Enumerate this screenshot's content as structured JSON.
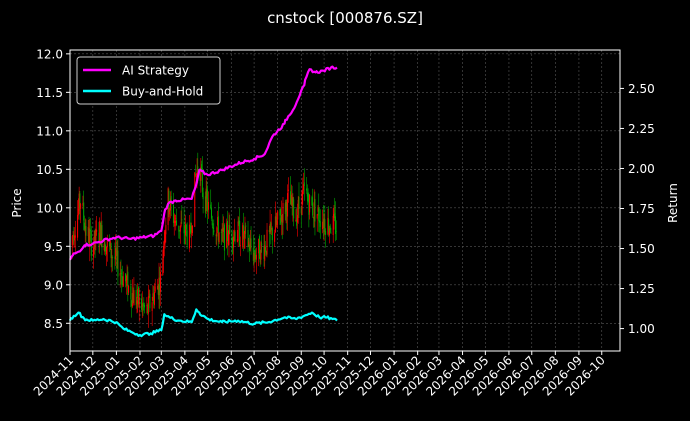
{
  "chart_data": {
    "type": "line",
    "title": "cnstock [000876.SZ]",
    "xlabel": "",
    "ylabel_left": "Price",
    "ylabel_right": "Return",
    "x_range": [
      "2024-11-01",
      "2026-10-25"
    ],
    "x_ticks": [
      "2024-11",
      "2024-12",
      "2025-01",
      "2025-02",
      "2025-03",
      "2025-04",
      "2025-05",
      "2025-06",
      "2025-07",
      "2025-08",
      "2025-09",
      "2025-10",
      "2025-11",
      "2025-12",
      "2026-01",
      "2026-02",
      "2026-03",
      "2026-04",
      "2026-05",
      "2026-06",
      "2026-07",
      "2026-08",
      "2026-09",
      "2026-10"
    ],
    "ylim_left": [
      8.14,
      12.05
    ],
    "yticks_left": [
      "8.5",
      "9.0",
      "9.5",
      "10.0",
      "10.5",
      "11.0",
      "11.5",
      "12.0"
    ],
    "ylim_right": [
      0.86,
      2.74
    ],
    "yticks_right": [
      "1.00",
      "1.25",
      "1.50",
      "1.75",
      "2.00",
      "2.25",
      "2.50"
    ],
    "grid": true,
    "legend": {
      "location": "upper-left"
    },
    "colors": {
      "up": "#ff0000",
      "down": "#00aa00",
      "ai": "#ff00ff",
      "bh": "#00ffff",
      "grid": "#555555",
      "background": "#000000",
      "text": "#ffffff"
    },
    "price_path": [
      [
        "2024-11-01",
        9.5
      ],
      [
        "2024-11-08",
        9.8
      ],
      [
        "2024-11-15",
        10.1
      ],
      [
        "2024-11-22",
        9.7
      ],
      [
        "2024-12-01",
        9.5
      ],
      [
        "2024-12-10",
        9.7
      ],
      [
        "2024-12-20",
        9.5
      ],
      [
        "2025-01-01",
        9.3
      ],
      [
        "2025-01-10",
        9.1
      ],
      [
        "2025-01-20",
        8.9
      ],
      [
        "2025-02-01",
        8.75
      ],
      [
        "2025-02-10",
        8.65
      ],
      [
        "2025-02-20",
        8.9
      ],
      [
        "2025-03-01",
        9.1
      ],
      [
        "2025-03-05",
        9.7
      ],
      [
        "2025-03-10",
        10.1
      ],
      [
        "2025-03-20",
        9.8
      ],
      [
        "2025-04-01",
        9.7
      ],
      [
        "2025-04-08",
        9.6
      ],
      [
        "2025-04-15",
        10.4
      ],
      [
        "2025-04-20",
        10.6
      ],
      [
        "2025-04-25",
        10.2
      ],
      [
        "2025-05-05",
        9.9
      ],
      [
        "2025-05-20",
        9.6
      ],
      [
        "2025-06-05",
        9.7
      ],
      [
        "2025-06-20",
        9.6
      ],
      [
        "2025-07-01",
        9.4
      ],
      [
        "2025-07-15",
        9.5
      ],
      [
        "2025-08-01",
        9.8
      ],
      [
        "2025-08-15",
        10.1
      ],
      [
        "2025-08-25",
        9.9
      ],
      [
        "2025-09-05",
        10.2
      ],
      [
        "2025-09-15",
        10.0
      ],
      [
        "2025-09-25",
        9.9
      ],
      [
        "2025-10-05",
        9.8
      ],
      [
        "2025-10-18",
        9.75
      ]
    ],
    "series": [
      {
        "name": "AI Strategy",
        "points": [
          [
            "2024-11-01",
            1.43
          ],
          [
            "2024-11-05",
            1.46
          ],
          [
            "2024-11-12",
            1.48
          ],
          [
            "2024-11-20",
            1.52
          ],
          [
            "2024-12-01",
            1.53
          ],
          [
            "2024-12-15",
            1.55
          ],
          [
            "2025-01-01",
            1.57
          ],
          [
            "2025-01-20",
            1.56
          ],
          [
            "2025-02-05",
            1.57
          ],
          [
            "2025-02-20",
            1.58
          ],
          [
            "2025-03-01",
            1.61
          ],
          [
            "2025-03-05",
            1.72
          ],
          [
            "2025-03-10",
            1.78
          ],
          [
            "2025-03-20",
            1.8
          ],
          [
            "2025-04-10",
            1.81
          ],
          [
            "2025-04-16",
            1.9
          ],
          [
            "2025-04-20",
            1.99
          ],
          [
            "2025-05-01",
            1.96
          ],
          [
            "2025-05-20",
            1.99
          ],
          [
            "2025-06-10",
            2.03
          ],
          [
            "2025-07-01",
            2.06
          ],
          [
            "2025-07-15",
            2.09
          ],
          [
            "2025-07-25",
            2.2
          ],
          [
            "2025-08-10",
            2.28
          ],
          [
            "2025-08-25",
            2.4
          ],
          [
            "2025-09-05",
            2.52
          ],
          [
            "2025-09-12",
            2.62
          ],
          [
            "2025-09-20",
            2.6
          ],
          [
            "2025-10-01",
            2.61
          ],
          [
            "2025-10-10",
            2.63
          ],
          [
            "2025-10-18",
            2.63
          ]
        ]
      },
      {
        "name": "Buy-and-Hold",
        "points": [
          [
            "2024-11-01",
            1.05
          ],
          [
            "2024-11-06",
            1.08
          ],
          [
            "2024-11-12",
            1.1
          ],
          [
            "2024-11-20",
            1.06
          ],
          [
            "2024-12-01",
            1.05
          ],
          [
            "2024-12-15",
            1.06
          ],
          [
            "2025-01-01",
            1.04
          ],
          [
            "2025-01-10",
            1.0
          ],
          [
            "2025-01-20",
            0.98
          ],
          [
            "2025-02-01",
            0.96
          ],
          [
            "2025-02-15",
            0.97
          ],
          [
            "2025-03-01",
            0.99
          ],
          [
            "2025-03-05",
            1.09
          ],
          [
            "2025-03-12",
            1.07
          ],
          [
            "2025-03-25",
            1.05
          ],
          [
            "2025-04-10",
            1.04
          ],
          [
            "2025-04-16",
            1.12
          ],
          [
            "2025-04-20",
            1.1
          ],
          [
            "2025-05-01",
            1.06
          ],
          [
            "2025-05-20",
            1.04
          ],
          [
            "2025-06-10",
            1.05
          ],
          [
            "2025-07-01",
            1.03
          ],
          [
            "2025-07-20",
            1.04
          ],
          [
            "2025-08-10",
            1.07
          ],
          [
            "2025-08-25",
            1.06
          ],
          [
            "2025-09-05",
            1.08
          ],
          [
            "2025-09-15",
            1.1
          ],
          [
            "2025-09-25",
            1.07
          ],
          [
            "2025-10-05",
            1.07
          ],
          [
            "2025-10-12",
            1.06
          ],
          [
            "2025-10-18",
            1.05
          ]
        ]
      }
    ]
  }
}
